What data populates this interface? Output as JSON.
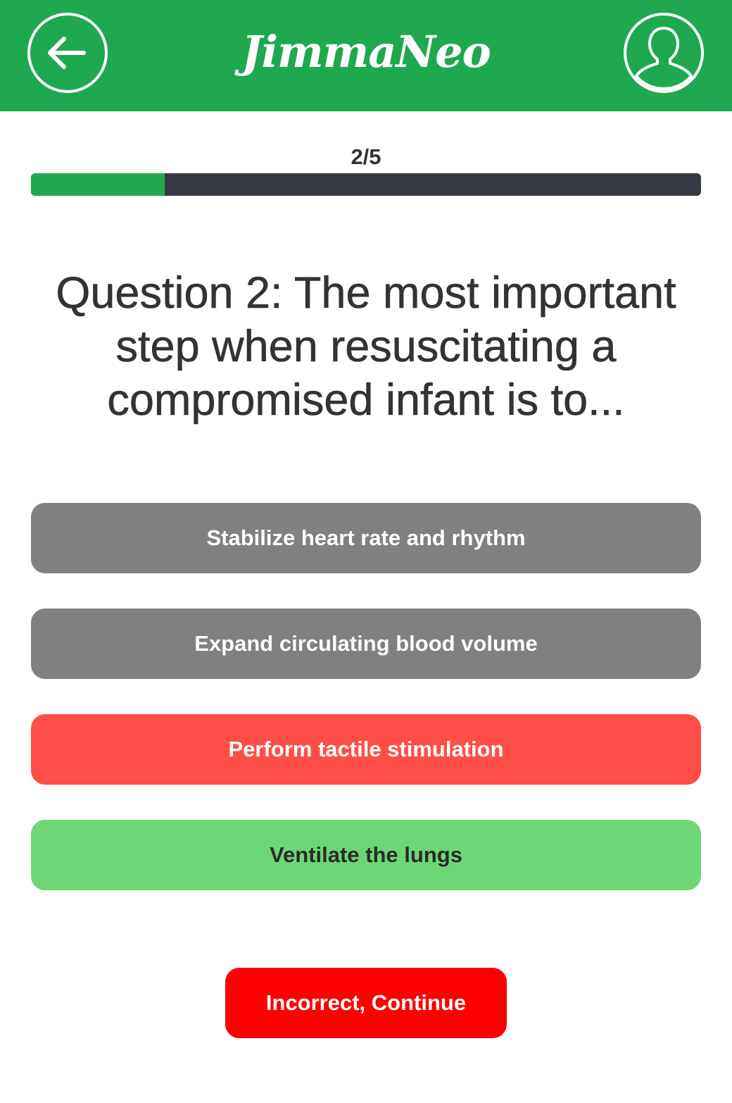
{
  "header": {
    "app_title": "JimmaNeo",
    "back_icon": "arrow-left-icon",
    "profile_icon": "user-profile-icon",
    "background_color": "#20a84e"
  },
  "progress": {
    "label": "2/5",
    "fill_fraction": 0.2,
    "fill_color": "#20a84e",
    "track_color": "#353a42"
  },
  "question": {
    "text": "Question 2: The most important step when resuscitating a compromised infant is to..."
  },
  "options": [
    {
      "label": "Stabilize heart rate and rhythm",
      "state": "neutral",
      "color": "#808080"
    },
    {
      "label": "Expand circulating blood volume",
      "state": "neutral",
      "color": "#808080"
    },
    {
      "label": "Perform tactile stimulation",
      "state": "selected-incorrect",
      "color": "#ff4d47"
    },
    {
      "label": "Ventilate the lungs",
      "state": "correct",
      "color": "#6dd775"
    }
  ],
  "continue_button": {
    "label": "Incorrect, Continue",
    "color": "#ff0000"
  }
}
